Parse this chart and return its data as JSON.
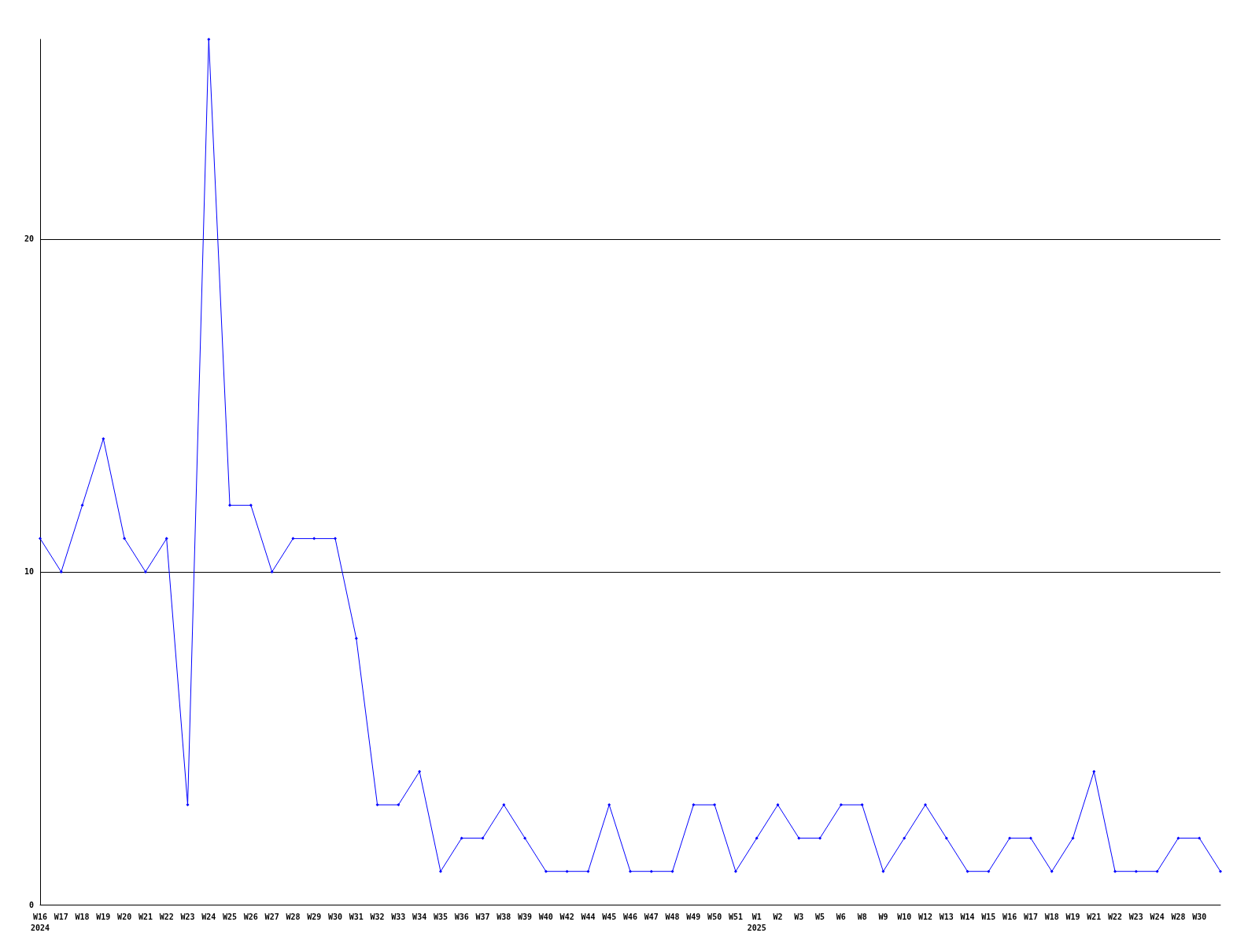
{
  "chart_data": {
    "type": "line",
    "categories": [
      "W16\n2024",
      "W17",
      "W18",
      "W19",
      "W20",
      "W21",
      "W22",
      "W23",
      "W24",
      "W25",
      "W26",
      "W27",
      "W28",
      "W29",
      "W30",
      "W31",
      "W32",
      "W33",
      "W34",
      "W35",
      "W36",
      "W37",
      "W38",
      "W39",
      "W40",
      "W42",
      "W44",
      "W45",
      "W46",
      "W47",
      "W48",
      "W49",
      "W50",
      "W51",
      "W1\n2025",
      "W2",
      "W3",
      "W5",
      "W6",
      "W8",
      "W9",
      "W10",
      "W12",
      "W13",
      "W14",
      "W15",
      "W16",
      "W17",
      "W18",
      "W19",
      "W21",
      "W22",
      "W23",
      "W24",
      "W28",
      "W30",
      null
    ],
    "series": [
      {
        "color": "#0000ff",
        "values": [
          11,
          10,
          12,
          14,
          11,
          10,
          11,
          3,
          26,
          12,
          12,
          10,
          11,
          11,
          11,
          8,
          3,
          3,
          4,
          1,
          2,
          2,
          3,
          2,
          1,
          1,
          1,
          3,
          1,
          1,
          1,
          3,
          3,
          1,
          2,
          3,
          2,
          2,
          3,
          3,
          1,
          2,
          3,
          2,
          1,
          1,
          2,
          2,
          1,
          2,
          4,
          1,
          1,
          1,
          2,
          2,
          1
        ]
      }
    ],
    "ylim": [
      0,
      26
    ],
    "yticks": [
      0,
      10,
      20
    ],
    "grid": "y",
    "marker": "diamond",
    "line_style": "solid"
  }
}
